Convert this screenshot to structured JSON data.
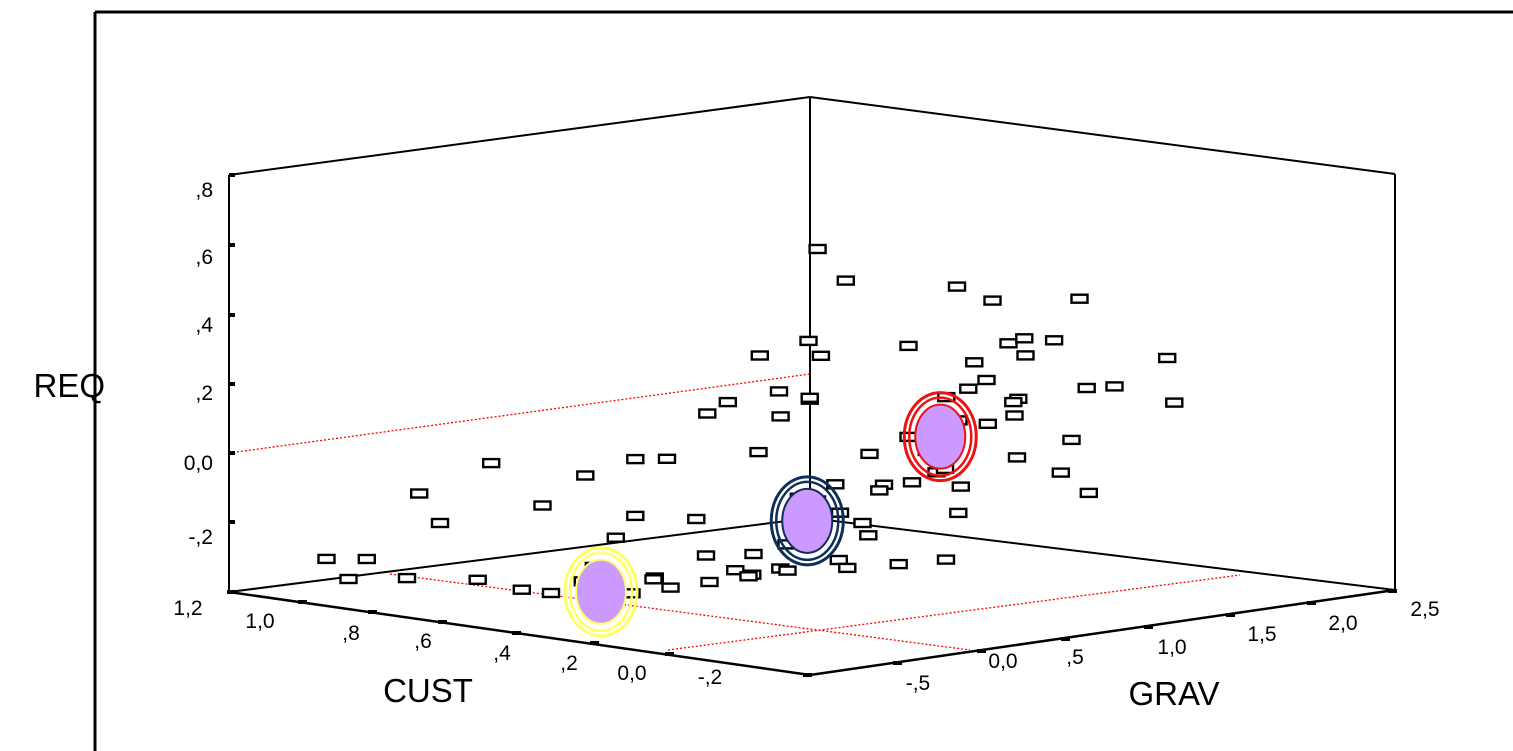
{
  "chart_data": {
    "type": "scatter",
    "projection": "3d",
    "title": "",
    "axes": {
      "x": {
        "label": "GRAV",
        "range": [
          -0.5,
          2.5
        ],
        "tick_labels": [
          "-,5",
          "0,0",
          ",5",
          "1,0",
          "1,5",
          "2,0",
          "2,5"
        ]
      },
      "y": {
        "label": "CUST",
        "range": [
          -0.2,
          1.2
        ],
        "tick_labels": [
          "-,2",
          "0,0",
          ",2",
          ",4",
          ",6",
          ",8",
          "1,0",
          "1,2"
        ]
      },
      "z": {
        "label": "REQ",
        "range": [
          -0.3,
          0.8
        ],
        "tick_labels": [
          "-,2",
          "0,0",
          ",2",
          ",4",
          ",6",
          ",8"
        ]
      }
    },
    "grid": false,
    "legend": "none",
    "marker": {
      "symbol": "open-square",
      "color": "#000000"
    },
    "series": [
      {
        "values": [
          [
            0.22,
            0.12,
            0.72
          ],
          [
            0.85,
            0.08,
            0.58
          ],
          [
            1.35,
            0.02,
            0.52
          ],
          [
            1.28,
            0.55,
            0.49
          ],
          [
            1.5,
            0.3,
            0.46
          ],
          [
            1.22,
            0.02,
            0.42
          ],
          [
            1.05,
            0.05,
            0.42
          ],
          [
            0.75,
            0.15,
            0.42
          ],
          [
            0.45,
            0.25,
            0.44
          ],
          [
            0.2,
            0.25,
            0.42
          ],
          [
            0.62,
            0.3,
            0.38
          ],
          [
            1.45,
            0.2,
            0.38
          ],
          [
            1.35,
            0.15,
            0.35
          ],
          [
            1.8,
            0.02,
            0.33
          ],
          [
            1.3,
            0.25,
            0.32
          ],
          [
            0.95,
            0.1,
            0.3
          ],
          [
            1.15,
            0.15,
            0.3
          ],
          [
            0.88,
            0.12,
            0.28
          ],
          [
            0.35,
            0.2,
            0.3
          ],
          [
            0.15,
            0.18,
            0.34
          ],
          [
            0.1,
            0.28,
            0.3
          ],
          [
            1.1,
            0.05,
            0.27
          ],
          [
            1.6,
            0.12,
            0.25
          ],
          [
            1.7,
            0.1,
            0.25
          ],
          [
            0.52,
            0.28,
            0.28
          ],
          [
            0.52,
            0.35,
            0.22
          ],
          [
            0.25,
            0.4,
            0.24
          ],
          [
            0.9,
            0.1,
            0.22
          ],
          [
            1.05,
            0.1,
            0.2
          ],
          [
            1.5,
            0.25,
            0.2
          ],
          [
            1.9,
            0.05,
            0.2
          ],
          [
            1.4,
            0.2,
            0.18
          ],
          [
            0.75,
            0.15,
            0.18
          ],
          [
            0.55,
            0.15,
            0.15
          ],
          [
            0.3,
            0.3,
            0.15
          ],
          [
            0.15,
            0.45,
            0.12
          ],
          [
            0.2,
            0.55,
            0.1
          ],
          [
            0.95,
            0.2,
            0.12
          ],
          [
            1.2,
            0.1,
            0.1
          ],
          [
            1.65,
            0.18,
            0.1
          ],
          [
            0.1,
            0.85,
            0.05
          ],
          [
            0.05,
            0.6,
            0.06
          ],
          [
            0.8,
            0.35,
            0.02
          ],
          [
            1.05,
            0.35,
            0.0
          ],
          [
            1.3,
            0.4,
            -0.02
          ],
          [
            1.55,
            0.4,
            -0.05
          ],
          [
            1.85,
            0.3,
            -0.02
          ],
          [
            0.4,
            0.25,
            0.03
          ],
          [
            0.6,
            0.3,
            0.0
          ],
          [
            0.3,
            0.45,
            -0.05
          ],
          [
            0.2,
            0.55,
            -0.05
          ],
          [
            0.15,
            0.75,
            -0.05
          ],
          [
            0.1,
            0.55,
            -0.1
          ],
          [
            0.55,
            0.35,
            -0.12
          ],
          [
            0.9,
            0.5,
            -0.1
          ],
          [
            1.25,
            0.55,
            -0.12
          ],
          [
            1.75,
            0.5,
            -0.15
          ],
          [
            2.1,
            0.35,
            -0.1
          ],
          [
            0.05,
            0.95,
            -0.12
          ],
          [
            0.05,
            1.0,
            -0.05
          ],
          [
            0.35,
            0.45,
            -0.15
          ],
          [
            0.5,
            0.45,
            -0.2
          ],
          [
            0.7,
            0.5,
            -0.18
          ],
          [
            0.3,
            0.55,
            -0.22
          ],
          [
            0.2,
            0.65,
            -0.2
          ],
          [
            0.25,
            0.7,
            -0.25
          ],
          [
            0.4,
            0.6,
            -0.24
          ],
          [
            0.8,
            0.55,
            -0.25
          ],
          [
            1.05,
            0.6,
            -0.26
          ],
          [
            1.35,
            0.6,
            -0.26
          ],
          [
            0.15,
            0.8,
            -0.28
          ],
          [
            0.3,
            0.8,
            -0.3
          ],
          [
            0.5,
            0.7,
            -0.3
          ],
          [
            0.7,
            0.7,
            -0.3
          ],
          [
            0.9,
            0.7,
            -0.3
          ],
          [
            1.1,
            0.7,
            -0.3
          ],
          [
            1.3,
            0.7,
            -0.3
          ],
          [
            1.5,
            0.65,
            -0.3
          ],
          [
            1.7,
            0.62,
            -0.3
          ],
          [
            1.9,
            0.6,
            -0.3
          ],
          [
            0.0,
            1.2,
            -0.25
          ],
          [
            0.1,
            1.15,
            -0.25
          ],
          [
            0.2,
            1.1,
            -0.3
          ],
          [
            0.35,
            1.0,
            -0.3
          ],
          [
            -0.1,
            1.1,
            -0.28
          ],
          [
            0.6,
            0.15,
            0.05
          ],
          [
            1.0,
            0.2,
            0.06
          ],
          [
            0.45,
            0.12,
            -0.02
          ],
          [
            0.65,
            0.2,
            -0.08
          ],
          [
            1.15,
            0.25,
            0.05
          ]
        ]
      }
    ],
    "centroids": [
      {
        "x": 0.7,
        "y": 0.05,
        "z": 0.2,
        "fill": "#cc99ff",
        "ring": "#ee1111"
      },
      {
        "x": 0.55,
        "y": 0.3,
        "z": -0.05,
        "fill": "#cc99ff",
        "ring": "#0e2f5a"
      },
      {
        "x": 0.45,
        "y": 0.75,
        "z": -0.3,
        "fill": "#cc99ff",
        "ring": "#ffff66"
      }
    ],
    "reference_lines": {
      "color": "#ff0000",
      "style": "dotted"
    }
  }
}
